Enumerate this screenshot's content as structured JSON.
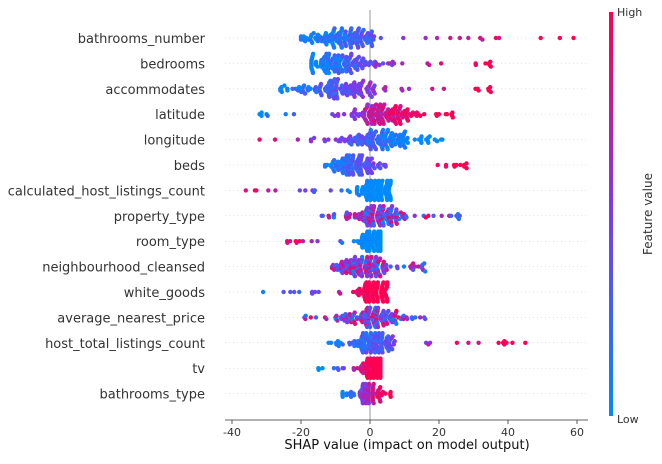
{
  "chart_data": {
    "type": "scatter",
    "subtype": "beeswarm",
    "xlabel": "SHAP value (impact on model output)",
    "xticks": [
      -40,
      -20,
      0,
      20,
      40,
      60
    ],
    "xlim": [
      -41,
      63
    ],
    "colorbar": {
      "label": "Feature value",
      "high_label": "High",
      "low_label": "Low",
      "low_color": "#008bfb",
      "mid_color": "#7c3aed",
      "high_color": "#ff0052"
    },
    "features": [
      {
        "name": "bathrooms_number",
        "center": -7,
        "spread": 5,
        "min": -20,
        "max": 59,
        "low_side": "left"
      },
      {
        "name": "bedrooms",
        "center": -8,
        "spread": 5,
        "min": -17,
        "max": 35,
        "low_side": "left"
      },
      {
        "name": "accommodates",
        "center": -8,
        "spread": 6,
        "min": -26,
        "max": 35,
        "low_side": "left"
      },
      {
        "name": "latitude",
        "center": 3,
        "spread": 5,
        "min": -32,
        "max": 24,
        "low_side": "left"
      },
      {
        "name": "longitude",
        "center": 3,
        "spread": 5,
        "min": -32,
        "max": 21,
        "low_side": "right"
      },
      {
        "name": "beds",
        "center": -4,
        "spread": 4,
        "min": -13,
        "max": 28,
        "low_side": "left"
      },
      {
        "name": "calculated_host_listings_count",
        "center": 2,
        "spread": 3,
        "min": -36,
        "max": 6,
        "low_side": "right"
      },
      {
        "name": "property_type",
        "center": 2,
        "spread": 4,
        "min": -14,
        "max": 26,
        "low_side": "mixed"
      },
      {
        "name": "room_type",
        "center": 1,
        "spread": 2,
        "min": -24,
        "max": 3,
        "low_side": "right"
      },
      {
        "name": "neighbourhood_cleansed",
        "center": -2,
        "spread": 4,
        "min": -11,
        "max": 16,
        "low_side": "mixed"
      },
      {
        "name": "white_goods",
        "center": 1,
        "spread": 2,
        "min": -31,
        "max": 5,
        "low_side": "left"
      },
      {
        "name": "average_nearest_price",
        "center": 1,
        "spread": 4,
        "min": -19,
        "max": 16,
        "low_side": "mixed"
      },
      {
        "name": "host_total_listings_count",
        "center": 1,
        "spread": 3,
        "min": -12,
        "max": 45,
        "low_side": "left"
      },
      {
        "name": "tv",
        "center": 1,
        "spread": 2,
        "min": -15,
        "max": 3,
        "low_side": "left"
      },
      {
        "name": "bathrooms_type",
        "center": 0,
        "spread": 1.5,
        "min": -8,
        "max": 6,
        "low_side": "left"
      }
    ]
  }
}
